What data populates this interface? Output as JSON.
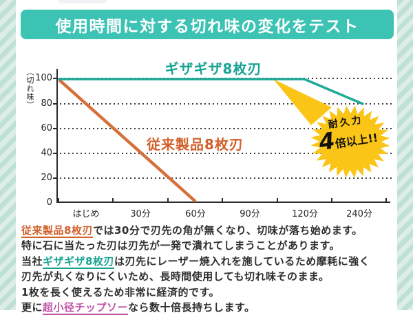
{
  "header": {
    "title": "使用時間に対する切れ味の変化をテスト",
    "bg_color": "#3cc3b4"
  },
  "chart_data": {
    "type": "line",
    "ylabel": "（切れ味）",
    "x_categories": [
      "はじめ",
      "30分",
      "60分",
      "90分",
      "120分",
      "240分"
    ],
    "y_tick_labels": [
      "100",
      "80",
      "60",
      "40",
      "20",
      "0"
    ],
    "ylim": [
      0,
      100
    ],
    "grid": "horizontal dotted at 20/40/60/80/100",
    "legend_position": "labels next to lines",
    "series": [
      {
        "name": "ギザギザ8枚刃",
        "color": "#1ea897",
        "points": [
          [
            "はじめ",
            100
          ],
          [
            "30分",
            100
          ],
          [
            "60分",
            100
          ],
          [
            "90分",
            100
          ],
          [
            "120分",
            100
          ],
          [
            "240分",
            80
          ]
        ]
      },
      {
        "name": "従来製品8枚刃",
        "color": "#d5703b",
        "points": [
          [
            "はじめ",
            100
          ],
          [
            "30分",
            50
          ],
          [
            "60分",
            0
          ]
        ]
      }
    ],
    "annotation": {
      "shape": "starburst",
      "color": "#fbc517",
      "line1": "耐久力",
      "big": "4",
      "line2_suffix": "倍以上!!"
    }
  },
  "body": {
    "line1": {
      "highlight": "従来製品8枚刃",
      "rest": "では30分で刃先の角が無くなり、切味が落ち始めます。"
    },
    "line2": "特に石に当たった刃は刃先が一発で潰れてしまうことがあります。",
    "line3": {
      "prefix": "当社",
      "highlight": "ギザギザ8枚刃",
      "rest": "は刃先にレーザー焼入れを施しているため摩耗に強く"
    },
    "line4": "刃先が丸くなりにくいため、長時間使用しても切れ味そのまま。",
    "line5": "1枚を長く使えるため非常に経済的です。",
    "line6": {
      "prefix": "更に",
      "highlight": "超小径チップソー",
      "rest": "なら数十倍長持ちします。"
    }
  },
  "colors": {
    "accent_teal": "#3cc3b4",
    "line_teal": "#1ea897",
    "text_teal": "#17a392",
    "line_orange": "#d5703b",
    "text_orange": "#d2602b",
    "burst_yellow": "#fbc517",
    "link_pink": "#c055a6",
    "stripe_a": "#bfe0d5",
    "stripe_b": "#dceee7"
  }
}
